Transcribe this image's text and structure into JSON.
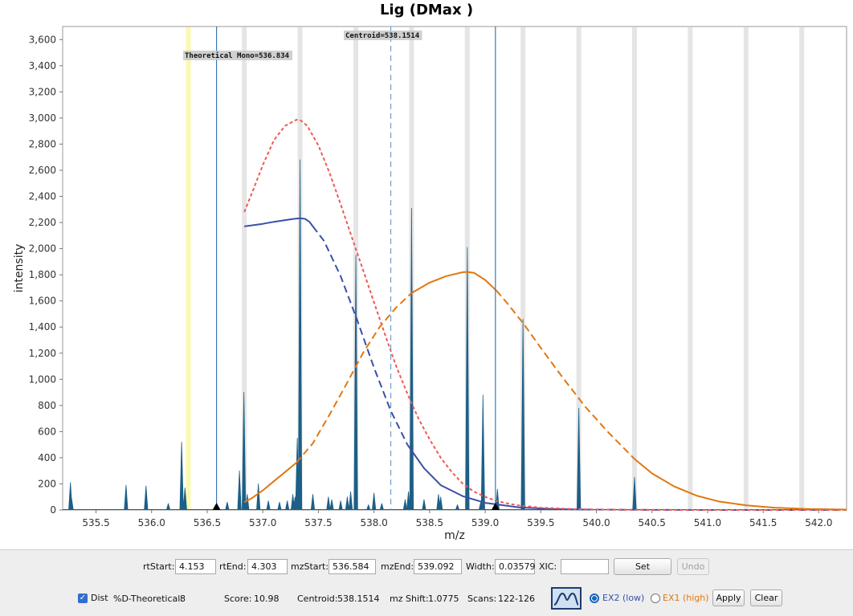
{
  "chart_data": {
    "type": "line",
    "title": "Lig (DMax )",
    "xlabel": "m/z",
    "ylabel": "intensity",
    "xlim": [
      535.2,
      542.25
    ],
    "ylim": [
      0,
      3700
    ],
    "xticks": [
      535.5,
      536.0,
      536.5,
      537.0,
      537.5,
      538.0,
      538.5,
      539.0,
      539.5,
      540.0,
      540.5,
      541.0,
      541.5,
      542.0
    ],
    "xtick_labels": [
      "535.5",
      "536.0",
      "536.5",
      "537.0",
      "537.5",
      "538.0",
      "538.5",
      "539.0",
      "539.5",
      "540.0",
      "540.5",
      "541.0",
      "541.5",
      "542.0"
    ],
    "yticks": [
      0,
      200,
      400,
      600,
      800,
      1000,
      1200,
      1400,
      1600,
      1800,
      2000,
      2200,
      2400,
      2600,
      2800,
      3000,
      3200,
      3400,
      3600
    ],
    "ytick_labels": [
      "0",
      "200",
      "400",
      "600",
      "800",
      "1,000",
      "1,200",
      "1,400",
      "1,600",
      "1,800",
      "2,000",
      "2,200",
      "2,400",
      "2,600",
      "2,800",
      "3,000",
      "3,200",
      "3,400",
      "3,600"
    ],
    "grid": false,
    "annotations": [
      {
        "text": "Theoretical Mono=536.834",
        "x": 536.834
      },
      {
        "text": "Centroid=538.1514",
        "x": 538.1514
      }
    ],
    "centroid_line_x": 538.1514,
    "theoretical_band_x": 536.33,
    "range_lines_x": [
      536.584,
      539.092
    ],
    "range_markers_x": [
      536.584,
      539.092
    ],
    "isotope_bands_x": [
      536.834,
      537.335,
      537.837,
      538.338,
      538.839,
      539.34,
      539.842,
      540.343,
      540.844,
      541.346,
      541.847
    ],
    "spectrum_peaks": [
      {
        "x": 535.27,
        "y": 210
      },
      {
        "x": 535.28,
        "y": 90
      },
      {
        "x": 535.77,
        "y": 190
      },
      {
        "x": 535.95,
        "y": 185
      },
      {
        "x": 536.15,
        "y": 50
      },
      {
        "x": 536.27,
        "y": 520
      },
      {
        "x": 536.3,
        "y": 170
      },
      {
        "x": 536.68,
        "y": 60
      },
      {
        "x": 536.79,
        "y": 300
      },
      {
        "x": 536.83,
        "y": 900
      },
      {
        "x": 536.86,
        "y": 120
      },
      {
        "x": 536.96,
        "y": 200
      },
      {
        "x": 537.05,
        "y": 70
      },
      {
        "x": 537.15,
        "y": 60
      },
      {
        "x": 537.22,
        "y": 70
      },
      {
        "x": 537.27,
        "y": 120
      },
      {
        "x": 537.29,
        "y": 100
      },
      {
        "x": 537.31,
        "y": 550
      },
      {
        "x": 537.335,
        "y": 2680
      },
      {
        "x": 537.45,
        "y": 120
      },
      {
        "x": 537.59,
        "y": 100
      },
      {
        "x": 537.62,
        "y": 80
      },
      {
        "x": 537.7,
        "y": 70
      },
      {
        "x": 537.76,
        "y": 100
      },
      {
        "x": 537.79,
        "y": 140
      },
      {
        "x": 537.837,
        "y": 1950
      },
      {
        "x": 537.95,
        "y": 40
      },
      {
        "x": 538.0,
        "y": 130
      },
      {
        "x": 538.07,
        "y": 50
      },
      {
        "x": 538.28,
        "y": 80
      },
      {
        "x": 538.31,
        "y": 140
      },
      {
        "x": 538.338,
        "y": 2310
      },
      {
        "x": 538.45,
        "y": 80
      },
      {
        "x": 538.58,
        "y": 120
      },
      {
        "x": 538.6,
        "y": 100
      },
      {
        "x": 538.75,
        "y": 40
      },
      {
        "x": 538.839,
        "y": 2010
      },
      {
        "x": 538.96,
        "y": 60
      },
      {
        "x": 538.98,
        "y": 880
      },
      {
        "x": 539.11,
        "y": 160
      },
      {
        "x": 539.34,
        "y": 1460
      },
      {
        "x": 539.842,
        "y": 780
      },
      {
        "x": 540.343,
        "y": 250
      }
    ],
    "series": [
      {
        "color": "#3a4fa8",
        "style": "solid",
        "points": [
          [
            536.834,
            2170
          ],
          [
            537.0,
            2190
          ],
          [
            537.1,
            2205
          ],
          [
            537.2,
            2218
          ],
          [
            537.28,
            2228
          ],
          [
            537.335,
            2232
          ],
          [
            537.38,
            2228
          ],
          [
            537.42,
            2205
          ],
          [
            537.45,
            2170
          ]
        ]
      },
      {
        "color": "#3a4fa8",
        "style": "dashed",
        "points": [
          [
            537.45,
            2170
          ],
          [
            537.55,
            2060
          ],
          [
            537.7,
            1790
          ],
          [
            537.85,
            1450
          ],
          [
            538.0,
            1090
          ],
          [
            538.15,
            760
          ],
          [
            538.3,
            500
          ]
        ]
      },
      {
        "color": "#3a4fa8",
        "style": "solid",
        "points": [
          [
            538.3,
            500
          ],
          [
            538.45,
            320
          ],
          [
            538.6,
            190
          ],
          [
            538.8,
            105
          ],
          [
            539.0,
            55
          ],
          [
            539.3,
            20
          ],
          [
            539.6,
            8
          ],
          [
            539.9,
            3
          ]
        ]
      },
      {
        "color": "#3a4fa8",
        "style": "dashed",
        "points": [
          [
            539.9,
            3
          ],
          [
            540.4,
            1
          ],
          [
            541.0,
            0
          ],
          [
            542.25,
            0
          ]
        ]
      },
      {
        "color": "#ef5a54",
        "style": "dotted",
        "points": [
          [
            536.834,
            2280
          ],
          [
            536.9,
            2420
          ],
          [
            537.0,
            2640
          ],
          [
            537.1,
            2830
          ],
          [
            537.2,
            2940
          ],
          [
            537.3,
            2985
          ],
          [
            537.335,
            2985
          ],
          [
            537.4,
            2940
          ],
          [
            537.5,
            2790
          ],
          [
            537.6,
            2580
          ],
          [
            537.7,
            2340
          ],
          [
            537.8,
            2090
          ],
          [
            537.9,
            1840
          ],
          [
            538.0,
            1590
          ],
          [
            538.1,
            1340
          ],
          [
            538.2,
            1100
          ],
          [
            538.3,
            890
          ],
          [
            538.4,
            700
          ],
          [
            538.5,
            540
          ],
          [
            538.6,
            400
          ],
          [
            538.7,
            290
          ],
          [
            538.8,
            200
          ],
          [
            538.9,
            140
          ],
          [
            539.0,
            100
          ],
          [
            539.1,
            70
          ],
          [
            539.2,
            50
          ],
          [
            539.3,
            35
          ],
          [
            539.5,
            18
          ],
          [
            539.8,
            7
          ],
          [
            540.2,
            2
          ],
          [
            540.8,
            0
          ],
          [
            542.25,
            0
          ]
        ]
      },
      {
        "color": "#e07810",
        "style": "solid",
        "points": [
          [
            536.834,
            60
          ],
          [
            536.9,
            90
          ],
          [
            537.0,
            150
          ],
          [
            537.1,
            220
          ],
          [
            537.2,
            290
          ],
          [
            537.3,
            360
          ]
        ]
      },
      {
        "color": "#e07810",
        "style": "dashed",
        "points": [
          [
            537.3,
            360
          ],
          [
            537.45,
            510
          ],
          [
            537.6,
            730
          ],
          [
            537.75,
            960
          ],
          [
            537.9,
            1200
          ],
          [
            538.05,
            1400
          ],
          [
            538.2,
            1550
          ],
          [
            538.338,
            1660
          ]
        ]
      },
      {
        "color": "#e07810",
        "style": "solid",
        "points": [
          [
            538.338,
            1660
          ],
          [
            538.5,
            1740
          ],
          [
            538.65,
            1790
          ],
          [
            538.8,
            1820
          ],
          [
            538.839,
            1822
          ],
          [
            538.9,
            1815
          ],
          [
            539.0,
            1760
          ],
          [
            539.1,
            1680
          ]
        ]
      },
      {
        "color": "#e07810",
        "style": "dashed",
        "points": [
          [
            539.1,
            1680
          ],
          [
            539.2,
            1580
          ],
          [
            539.35,
            1420
          ],
          [
            539.5,
            1240
          ],
          [
            539.7,
            1010
          ],
          [
            539.9,
            790
          ],
          [
            540.1,
            600
          ],
          [
            540.343,
            390
          ]
        ]
      },
      {
        "color": "#e07810",
        "style": "solid",
        "points": [
          [
            540.343,
            390
          ],
          [
            540.5,
            280
          ],
          [
            540.7,
            180
          ],
          [
            540.9,
            110
          ],
          [
            541.1,
            65
          ],
          [
            541.35,
            35
          ],
          [
            541.6,
            18
          ],
          [
            541.9,
            8
          ],
          [
            542.25,
            3
          ]
        ]
      }
    ]
  },
  "controls": {
    "rtStart_label": "rtStart:",
    "rtStart_value": "4.153",
    "rtEnd_label": "rtEnd:",
    "rtEnd_value": "4.303",
    "mzStart_label": "mzStart:",
    "mzStart_value": "536.584",
    "mzEnd_label": "mzEnd:",
    "mzEnd_value": "539.092",
    "width_label": "Width:",
    "width_value": "0.03579",
    "xic_label": "XIC:",
    "xic_value": "",
    "set_label": "Set",
    "undo_label": "Undo",
    "dist_label": "Dist",
    "pct_label": "%D-Theoretical:",
    "pct_value": "8",
    "score_label": "Score:",
    "score_value": "10.98",
    "centroid_label": "Centroid:",
    "centroid_value": "538.1514",
    "shift_label": "mz Shift:",
    "shift_value": "1.0775",
    "scans_label": "Scans:",
    "scans_value": "122-126",
    "ex2_label": "EX2 (low)",
    "ex1_label": "EX1 (high)",
    "apply_label": "Apply",
    "clear_label": "Clear",
    "ex2_color": "#3a4fa8",
    "ex1_color": "#e07810"
  }
}
